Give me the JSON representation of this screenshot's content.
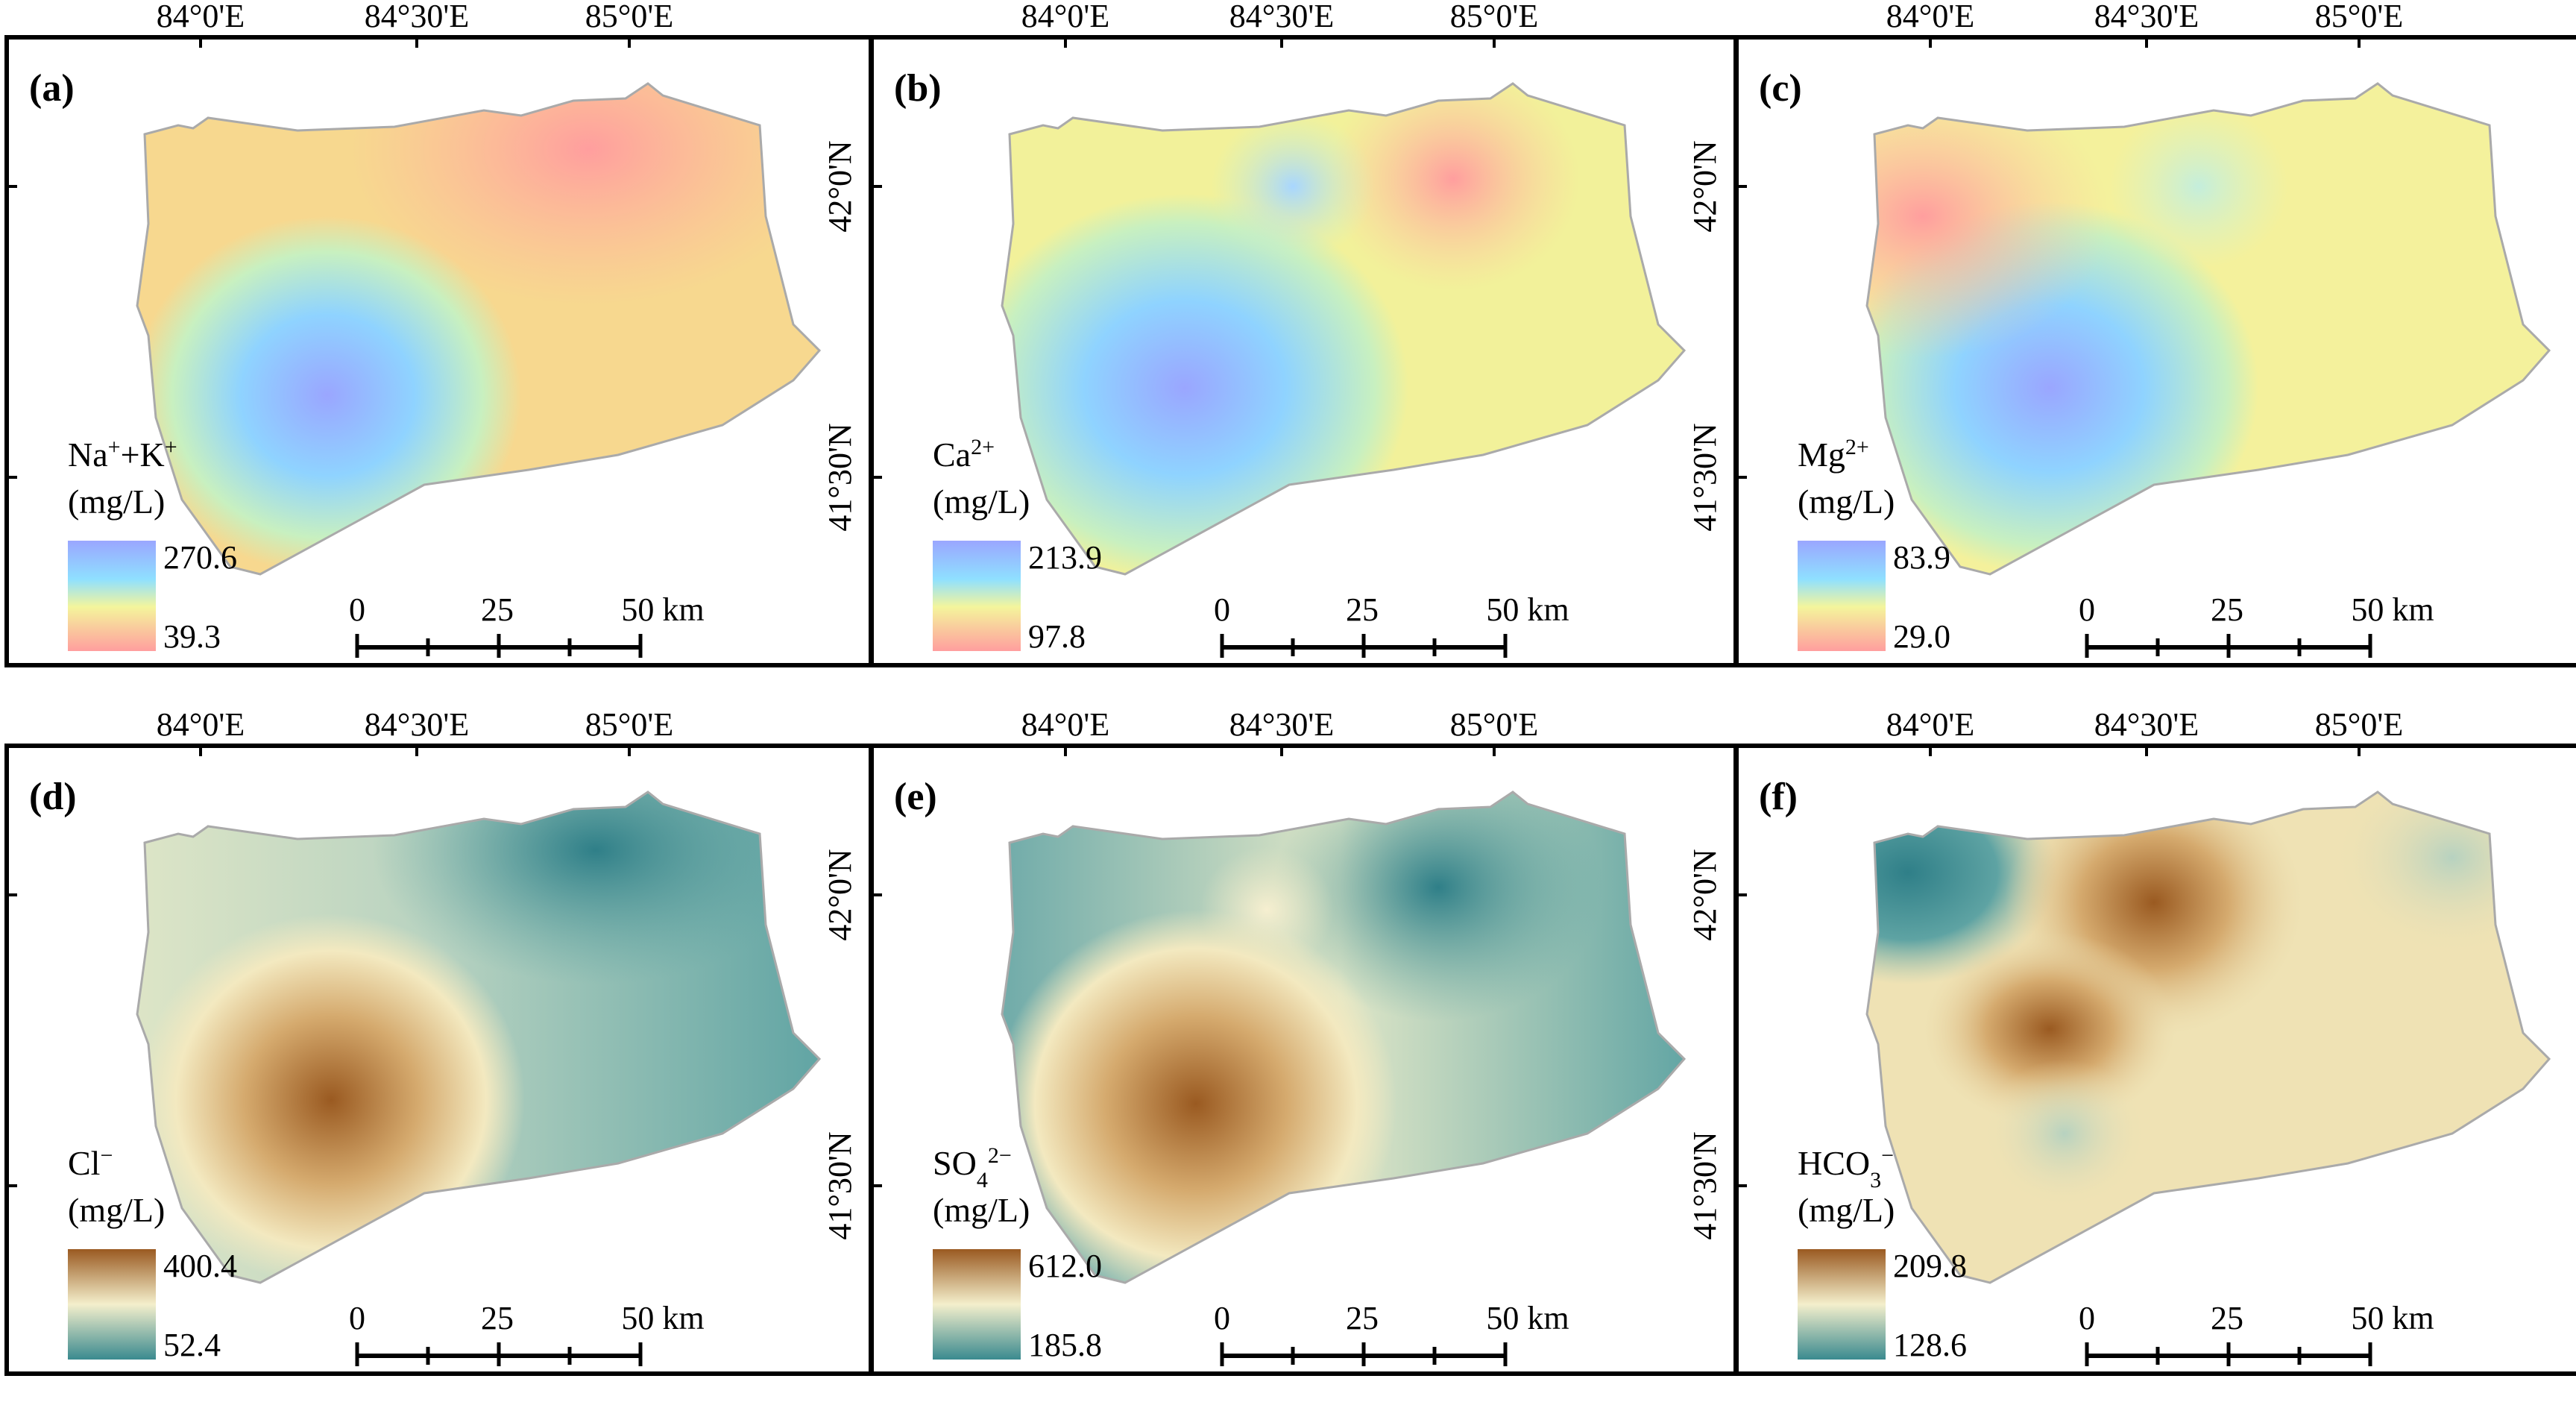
{
  "figure": {
    "axes": {
      "lon_labels": [
        "84°0'E",
        "84°30'E",
        "85°0'E"
      ],
      "lat_labels": [
        "42°0'N",
        "41°30'N"
      ]
    },
    "scale_bar": {
      "labels": [
        "0",
        "25",
        "50 km"
      ]
    },
    "panels": [
      {
        "id": "a",
        "tag": "(a)",
        "legend": {
          "title_main": "Na",
          "sup1": "+",
          "title_mid": "+K",
          "sup2": "+",
          "unit": "(mg/L)",
          "max": "270.6",
          "min": "39.3"
        },
        "colors": {
          "base": "#f7d88f",
          "high": "#9aa6ff",
          "low": "#ff9e9e"
        }
      },
      {
        "id": "b",
        "tag": "(b)",
        "legend": {
          "title_main": "Ca",
          "sup1": "2+",
          "title_mid": "",
          "sup2": "",
          "unit": "(mg/L)",
          "max": "213.9",
          "min": "97.8"
        },
        "colors": {
          "base": "#f2f19a",
          "high": "#9aa6ff",
          "low": "#ff9e9e"
        }
      },
      {
        "id": "c",
        "tag": "(c)",
        "legend": {
          "title_main": "Mg",
          "sup1": "2+",
          "title_mid": "",
          "sup2": "",
          "unit": "(mg/L)",
          "max": "83.9",
          "min": "29.0"
        },
        "colors": {
          "base": "#f4f19c",
          "high": "#9aa6ff",
          "low": "#ff9e9e"
        }
      },
      {
        "id": "d",
        "tag": "(d)",
        "legend": {
          "title_main": "Cl",
          "sup1": "−",
          "title_mid": "",
          "sup2": "",
          "unit": "(mg/L)",
          "max": "400.4",
          "min": "52.4"
        },
        "colors": {
          "base": "#9cc2b4",
          "high": "#9a5a21",
          "low": "#3a8a8f"
        }
      },
      {
        "id": "e",
        "tag": "(e)",
        "legend": {
          "title_main": "SO",
          "sub": "4",
          "sup1": "2−",
          "title_mid": "",
          "sup2": "",
          "unit": "(mg/L)",
          "max": "612.0",
          "min": "185.8"
        },
        "colors": {
          "base": "#a9c9b6",
          "high": "#9a5a21",
          "low": "#3a8a8f"
        }
      },
      {
        "id": "f",
        "tag": "(f)",
        "legend": {
          "title_main": "HCO",
          "sub": "3",
          "sup1": "−",
          "title_mid": "",
          "sup2": "",
          "unit": "(mg/L)",
          "max": "209.8",
          "min": "128.6"
        },
        "colors": {
          "base": "#efe2b4",
          "high": "#9a5a21",
          "low": "#3a8a8f"
        }
      }
    ]
  }
}
